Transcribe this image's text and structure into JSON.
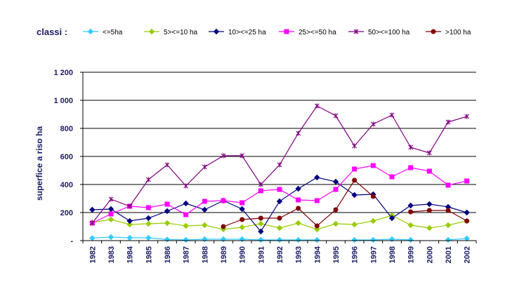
{
  "legend_title": "classi :",
  "chart_data": {
    "type": "line",
    "title": "",
    "xlabel": "",
    "ylabel": "superfice a riso ha",
    "ylim": [
      0,
      1200
    ],
    "yticks": [
      0,
      200,
      400,
      600,
      800,
      1000,
      1200
    ],
    "ytick_labels": [
      "-",
      "200",
      "400",
      "600",
      "800",
      "1 000",
      "1 200"
    ],
    "grid": true,
    "legend_position": "top",
    "categories": [
      "1982",
      "1983",
      "1984",
      "1985",
      "1986",
      "1987",
      "1988",
      "1989",
      "1990",
      "1991",
      "1992",
      "1993",
      "1994",
      "1995",
      "1996",
      "1997",
      "1998",
      "1999",
      "2000",
      "2001",
      "2002"
    ],
    "series": [
      {
        "name": "<=5ha",
        "color": "#33ccff",
        "marker": "diamond",
        "values": [
          18,
          25,
          20,
          20,
          8,
          5,
          10,
          10,
          10,
          5,
          5,
          5,
          5,
          null,
          5,
          5,
          10,
          5,
          null,
          5,
          15
        ]
      },
      {
        "name": "5><=10 ha",
        "color": "#99cc00",
        "marker": "diamond",
        "values": [
          130,
          150,
          115,
          120,
          125,
          105,
          110,
          80,
          95,
          120,
          90,
          125,
          80,
          120,
          115,
          140,
          180,
          110,
          90,
          110,
          140
        ]
      },
      {
        "name": "10><=25 ha",
        "color": "#000080",
        "marker": "diamond",
        "values": [
          220,
          225,
          140,
          160,
          210,
          265,
          220,
          285,
          225,
          65,
          280,
          370,
          450,
          420,
          325,
          330,
          160,
          250,
          260,
          240,
          200
        ]
      },
      {
        "name": "25><=50 ha",
        "color": "#ff00ff",
        "marker": "square",
        "values": [
          125,
          190,
          245,
          235,
          260,
          185,
          280,
          285,
          270,
          355,
          365,
          290,
          285,
          365,
          510,
          535,
          455,
          520,
          495,
          395,
          425
        ]
      },
      {
        "name": "50><=100 ha",
        "color": "#800080",
        "marker": "star",
        "values": [
          125,
          295,
          245,
          435,
          540,
          390,
          525,
          605,
          605,
          400,
          540,
          765,
          960,
          890,
          675,
          830,
          895,
          665,
          625,
          845,
          885
        ]
      },
      {
        "name": ">100 ha",
        "color": "#800000",
        "marker": "circle",
        "values": [
          null,
          null,
          null,
          null,
          null,
          null,
          null,
          100,
          150,
          160,
          160,
          230,
          105,
          220,
          430,
          315,
          null,
          205,
          215,
          215,
          140
        ]
      }
    ]
  }
}
